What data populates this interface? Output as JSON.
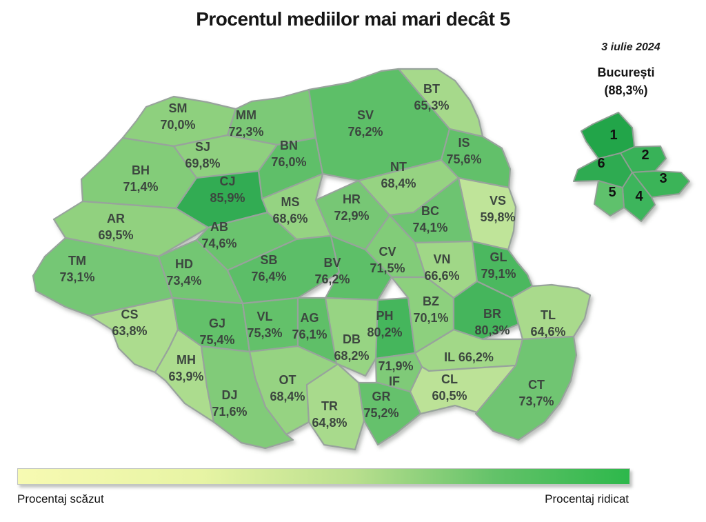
{
  "title": "Procentul mediilor mai mari decât 5",
  "date": "3 iulie 2024",
  "bucharest": {
    "name": "București",
    "value": "(88,3%)",
    "pct": 88.3,
    "sectors": [
      {
        "label": "1",
        "color": "#21a54a"
      },
      {
        "label": "2",
        "color": "#37b258"
      },
      {
        "label": "3",
        "color": "#3bb459"
      },
      {
        "label": "4",
        "color": "#3eb55b"
      },
      {
        "label": "5",
        "color": "#5fc16c"
      },
      {
        "label": "6",
        "color": "#2dab51"
      }
    ]
  },
  "legend": {
    "low_label": "Procentaj scăzut",
    "high_label": "Procentaj ridicat",
    "gradient_colors": [
      "#f7fab2",
      "#e7f4a4",
      "#b9df8e",
      "#63c269",
      "#2db84b"
    ]
  },
  "counties": [
    {
      "code": "BT",
      "value": "65,3%",
      "pct": 65.3
    },
    {
      "code": "SM",
      "value": "70,0%",
      "pct": 70.0
    },
    {
      "code": "MM",
      "value": "72,3%",
      "pct": 72.3
    },
    {
      "code": "SV",
      "value": "76,2%",
      "pct": 76.2
    },
    {
      "code": "IS",
      "value": "75,6%",
      "pct": 75.6
    },
    {
      "code": "SJ",
      "value": "69,8%",
      "pct": 69.8
    },
    {
      "code": "BN",
      "value": "76,0%",
      "pct": 76.0
    },
    {
      "code": "BH",
      "value": "71,4%",
      "pct": 71.4
    },
    {
      "code": "CJ",
      "value": "85,9%",
      "pct": 85.9
    },
    {
      "code": "NT",
      "value": "68,4%",
      "pct": 68.4
    },
    {
      "code": "VS",
      "value": "59,8%",
      "pct": 59.8
    },
    {
      "code": "AR",
      "value": "69,5%",
      "pct": 69.5
    },
    {
      "code": "MS",
      "value": "68,6%",
      "pct": 68.6
    },
    {
      "code": "HR",
      "value": "72,9%",
      "pct": 72.9
    },
    {
      "code": "BC",
      "value": "74,1%",
      "pct": 74.1
    },
    {
      "code": "AB",
      "value": "74,6%",
      "pct": 74.6
    },
    {
      "code": "TM",
      "value": "73,1%",
      "pct": 73.1
    },
    {
      "code": "HD",
      "value": "73,4%",
      "pct": 73.4
    },
    {
      "code": "SB",
      "value": "76,4%",
      "pct": 76.4
    },
    {
      "code": "BV",
      "value": "76,2%",
      "pct": 76.2
    },
    {
      "code": "CV",
      "value": "71,5%",
      "pct": 71.5
    },
    {
      "code": "VN",
      "value": "66,6%",
      "pct": 66.6
    },
    {
      "code": "GL",
      "value": "79,1%",
      "pct": 79.1
    },
    {
      "code": "CS",
      "value": "63,8%",
      "pct": 63.8
    },
    {
      "code": "GJ",
      "value": "75,4%",
      "pct": 75.4
    },
    {
      "code": "VL",
      "value": "75,3%",
      "pct": 75.3
    },
    {
      "code": "AG",
      "value": "76,1%",
      "pct": 76.1
    },
    {
      "code": "PH",
      "value": "80,2%",
      "pct": 80.2
    },
    {
      "code": "BZ",
      "value": "70,1%",
      "pct": 70.1
    },
    {
      "code": "BR",
      "value": "80,3%",
      "pct": 80.3
    },
    {
      "code": "TL",
      "value": "64,6%",
      "pct": 64.6
    },
    {
      "code": "MH",
      "value": "63,9%",
      "pct": 63.9
    },
    {
      "code": "DB",
      "value": "68,2%",
      "pct": 68.2
    },
    {
      "code": "IL",
      "value": "66,2%",
      "pct": 66.2,
      "layout": "inline"
    },
    {
      "code": "IF",
      "value": "71,9%",
      "pct": 71.9,
      "layout": "value-above"
    },
    {
      "code": "CL",
      "value": "60,5%",
      "pct": 60.5
    },
    {
      "code": "OT",
      "value": "68,4%",
      "pct": 68.4
    },
    {
      "code": "DJ",
      "value": "71,6%",
      "pct": 71.6
    },
    {
      "code": "TR",
      "value": "64,8%",
      "pct": 64.8
    },
    {
      "code": "GR",
      "value": "75,2%",
      "pct": 75.2
    },
    {
      "code": "CT",
      "value": "73,7%",
      "pct": 73.7
    }
  ],
  "chart_data": {
    "type": "heatmap",
    "title": "Procentul mediilor mai mari decât 5",
    "date": "3 iulie 2024",
    "legend": [
      "Procentaj scăzut",
      "Procentaj ridicat"
    ],
    "categories": [
      "BT",
      "SM",
      "MM",
      "SV",
      "IS",
      "SJ",
      "BN",
      "BH",
      "CJ",
      "NT",
      "VS",
      "AR",
      "MS",
      "HR",
      "BC",
      "AB",
      "TM",
      "HD",
      "SB",
      "BV",
      "CV",
      "VN",
      "GL",
      "CS",
      "GJ",
      "VL",
      "AG",
      "PH",
      "BZ",
      "BR",
      "TL",
      "MH",
      "DB",
      "IL",
      "IF",
      "CL",
      "OT",
      "DJ",
      "TR",
      "GR",
      "CT",
      "București"
    ],
    "values": [
      65.3,
      70.0,
      72.3,
      76.2,
      75.6,
      69.8,
      76.0,
      71.4,
      85.9,
      68.4,
      59.8,
      69.5,
      68.6,
      72.9,
      74.1,
      74.6,
      73.1,
      73.4,
      76.4,
      76.2,
      71.5,
      66.6,
      79.1,
      63.8,
      75.4,
      75.3,
      76.1,
      80.2,
      70.1,
      80.3,
      64.6,
      63.9,
      68.2,
      66.2,
      71.9,
      60.5,
      68.4,
      71.6,
      64.8,
      75.2,
      73.7,
      88.3
    ],
    "value_range": [
      59.8,
      88.3
    ]
  }
}
